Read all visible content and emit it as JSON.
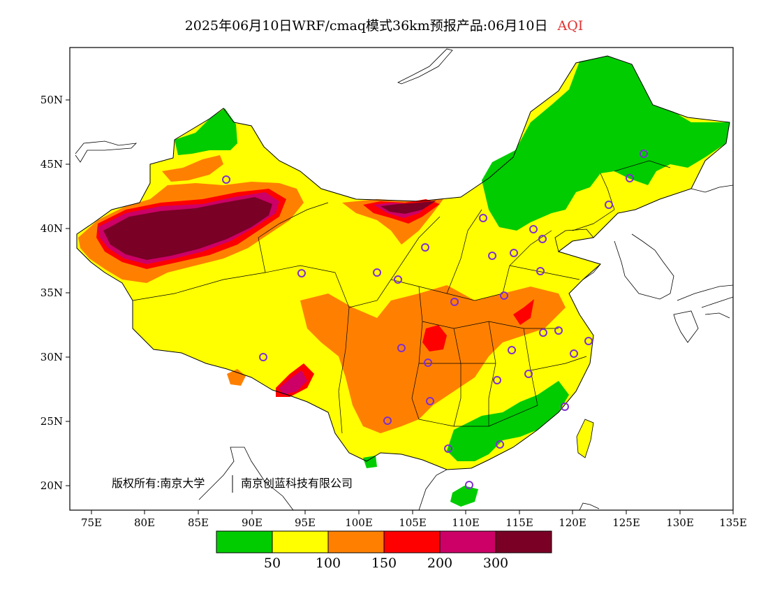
{
  "title": {
    "main": "2025年06月10日WRF/cmaq模式36km预报产品:06月10日",
    "variable": "AQI",
    "variable_color": "#e03030"
  },
  "axes": {
    "x_ticks": [
      "75E",
      "80E",
      "85E",
      "90E",
      "95E",
      "100E",
      "105E",
      "110E",
      "115E",
      "120E",
      "125E",
      "130E",
      "135E"
    ],
    "y_ticks": [
      "50N",
      "45N",
      "40N",
      "35N",
      "30N",
      "25N",
      "20N"
    ]
  },
  "credit": {
    "part1": "版权所有:南京大学",
    "part2": "南京创蓝科技有限公司"
  },
  "legend": {
    "colors": [
      "#00cc00",
      "#ffff00",
      "#ff8000",
      "#ff0000",
      "#cc0066",
      "#7a0026"
    ],
    "labels": [
      "50",
      "100",
      "150",
      "200",
      "300"
    ]
  },
  "map_colors": {
    "ocean": "#ffffff",
    "good": "#00cc00",
    "moderate": "#ffff00",
    "sensitive": "#ff8000",
    "unhealthy": "#ff0000",
    "very_unhealthy": "#cc0066",
    "hazardous": "#7a0026",
    "station_marker": "#7f2fd0"
  }
}
